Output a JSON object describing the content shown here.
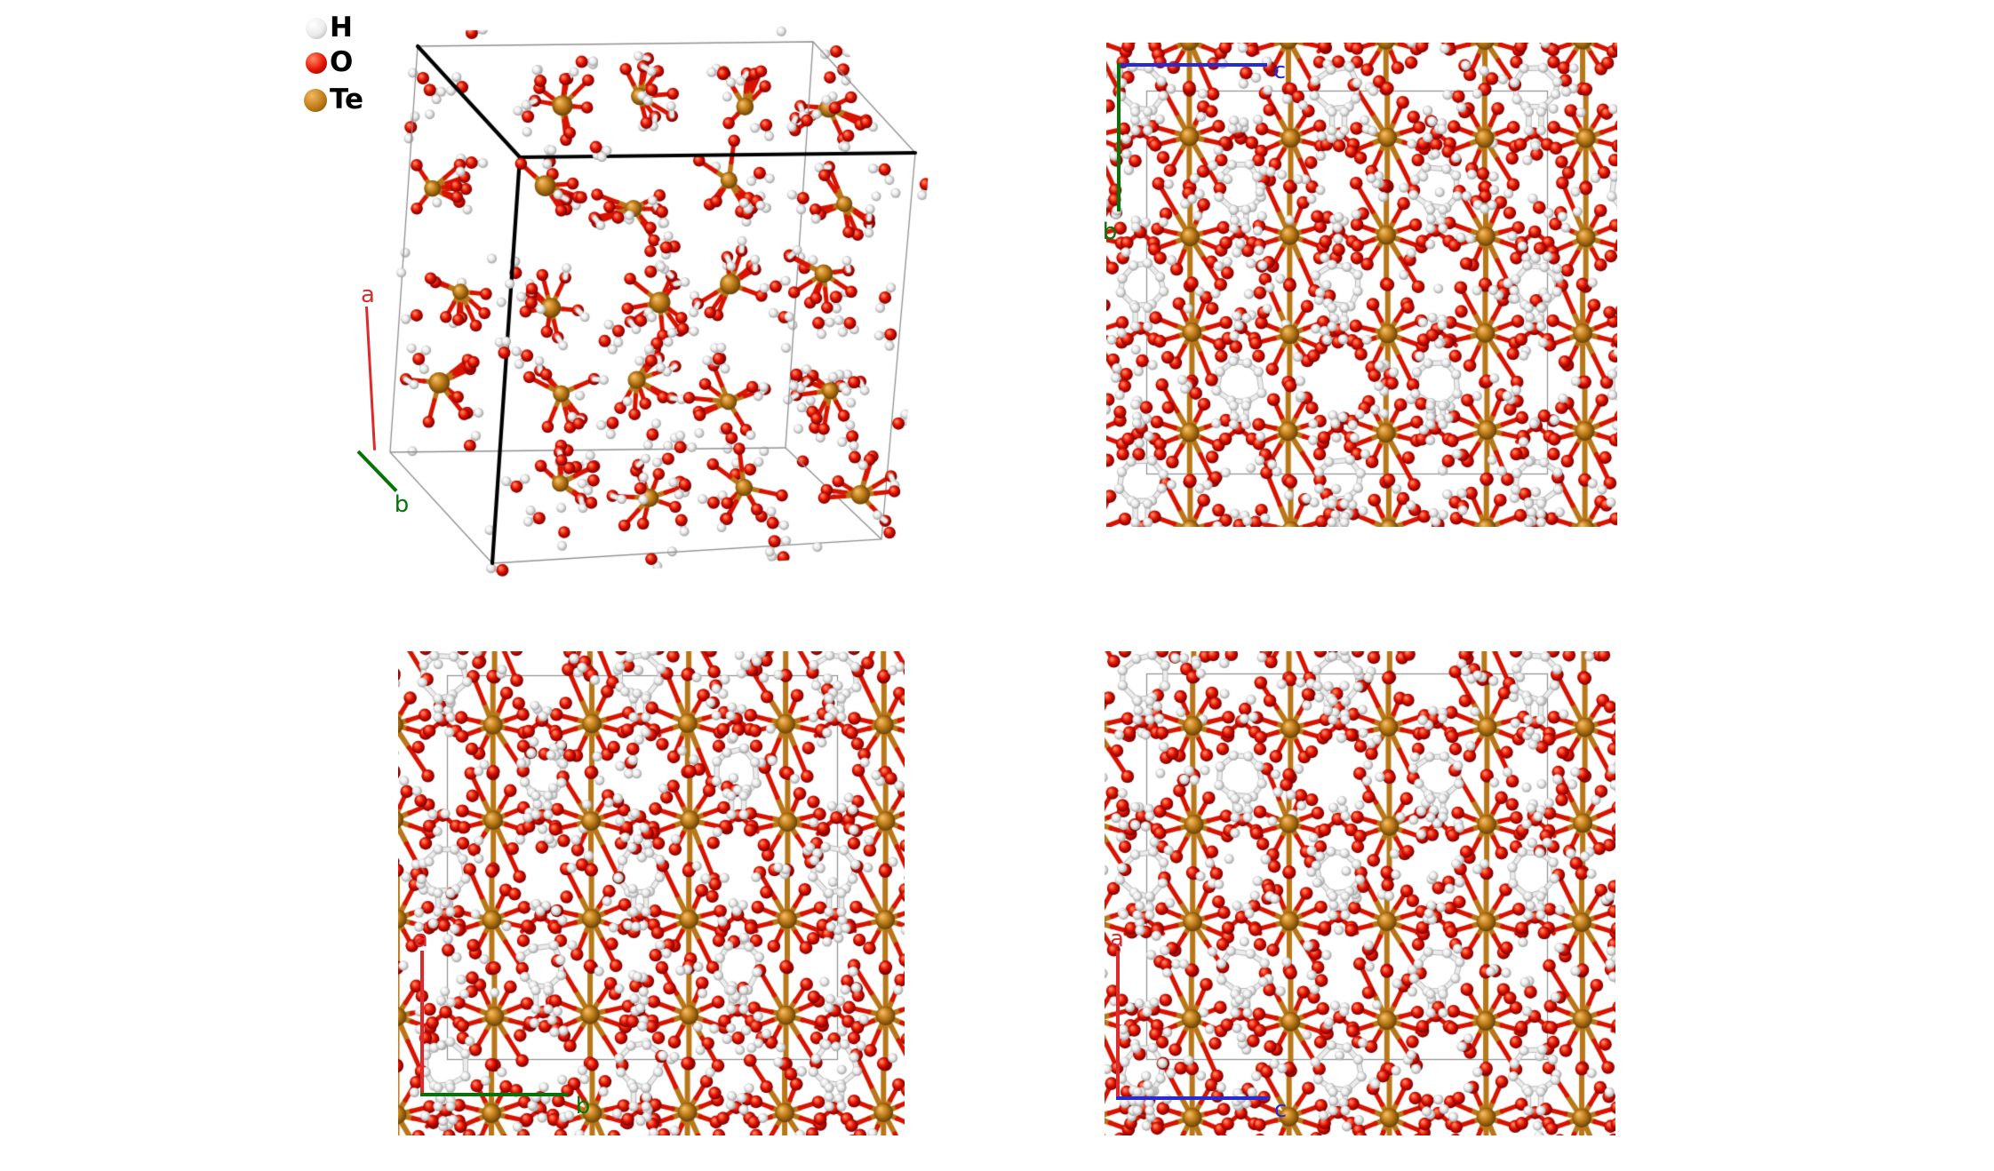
{
  "legend": {
    "items": [
      {
        "symbol": "H",
        "atom": "H"
      },
      {
        "symbol": "O",
        "atom": "O"
      },
      {
        "symbol": "Te",
        "atom": "Te"
      }
    ]
  },
  "atoms": {
    "H": {
      "hi": "#ffffff",
      "base": "#ebebeb",
      "dark": "#a6a6a6"
    },
    "O": {
      "hi": "#ff8a66",
      "base": "#e61300",
      "dark": "#7a0000"
    },
    "Te": {
      "hi": "#f0b964",
      "base": "#c07c17",
      "dark": "#6f470b"
    }
  },
  "bonds": {
    "red": "#d81300",
    "white": "#ececec",
    "white_edge": "#b9b9b9",
    "orange": "#b9771a"
  },
  "cell": {
    "line": "#8f8f8f",
    "edge": "#000000"
  },
  "axes": {
    "a": {
      "label": "a",
      "color": "#dd2b2b"
    },
    "b": {
      "label": "b",
      "color": "#077307"
    },
    "c": {
      "label": "c",
      "color": "#2a2ad2"
    }
  }
}
